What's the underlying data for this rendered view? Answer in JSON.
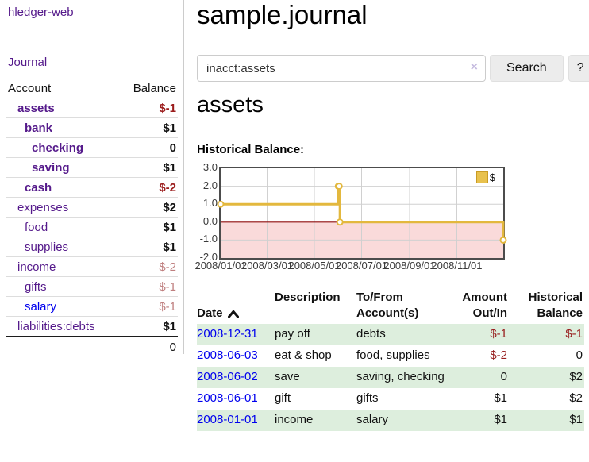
{
  "app": {
    "title": "hledger-web"
  },
  "sidebar": {
    "journal_link": "Journal",
    "accounts_table": {
      "headers": {
        "account": "Account",
        "balance": "Balance"
      },
      "rows": [
        {
          "account": "assets",
          "balance": "$-1",
          "indent": 1,
          "in_account": true,
          "balance_style": "neg-strong"
        },
        {
          "account": "bank",
          "balance": "$1",
          "indent": 2,
          "in_account": true,
          "balance_style": ""
        },
        {
          "account": "checking",
          "balance": "0",
          "indent": 3,
          "in_account": true,
          "balance_style": ""
        },
        {
          "account": "saving",
          "balance": "$1",
          "indent": 3,
          "in_account": true,
          "balance_style": ""
        },
        {
          "account": "cash",
          "balance": "$-2",
          "indent": 2,
          "in_account": true,
          "balance_style": "neg-strong"
        },
        {
          "account": "expenses",
          "balance": "$2",
          "indent": 1,
          "in_account": false,
          "balance_style": ""
        },
        {
          "account": "food",
          "balance": "$1",
          "indent": 2,
          "in_account": false,
          "balance_style": ""
        },
        {
          "account": "supplies",
          "balance": "$1",
          "indent": 2,
          "in_account": false,
          "balance_style": ""
        },
        {
          "account": "income",
          "balance": "$-2",
          "indent": 1,
          "in_account": false,
          "balance_style": "neg-muted"
        },
        {
          "account": "gifts",
          "balance": "$-1",
          "indent": 2,
          "in_account": false,
          "balance_style": "neg-muted"
        },
        {
          "account": "salary",
          "balance": "$-1",
          "indent": 2,
          "in_account": false,
          "balance_style": "neg-muted",
          "link_color": "blue"
        },
        {
          "account": "liabilities:debts",
          "balance": "$1",
          "indent": 1,
          "in_account": false,
          "balance_style": ""
        }
      ],
      "total": "0"
    }
  },
  "main": {
    "title": "sample.journal",
    "search": {
      "value": "inacct:assets",
      "clear_icon": "×",
      "button_label": "Search",
      "help_label": "?"
    },
    "account_heading": "assets",
    "chart_heading": "Historical Balance:"
  },
  "chart_data": {
    "type": "line",
    "title": "Historical Balance:",
    "x_range": [
      "2008-01-01",
      "2008-12-31"
    ],
    "ylim": [
      -2,
      3
    ],
    "grid": true,
    "legend_position": "top-right",
    "y_ticks": [
      {
        "value": 3,
        "label": "3.0"
      },
      {
        "value": 2,
        "label": "2.0"
      },
      {
        "value": 1,
        "label": "1.0"
      },
      {
        "value": 0,
        "label": "0.0"
      },
      {
        "value": -1,
        "label": "-1.0"
      },
      {
        "value": -2,
        "label": "-2.0"
      }
    ],
    "x_ticks": [
      {
        "date": "2008-01-01",
        "label": "2008/01/01"
      },
      {
        "date": "2008-03-01",
        "label": "2008/03/01"
      },
      {
        "date": "2008-05-01",
        "label": "2008/05/01"
      },
      {
        "date": "2008-07-01",
        "label": "2008/07/01"
      },
      {
        "date": "2008-09-01",
        "label": "2008/09/01"
      },
      {
        "date": "2008-11-01",
        "label": "2008/11/01"
      }
    ],
    "series": [
      {
        "name": "$",
        "interpolation": "step-after",
        "points": [
          [
            "2008-01-01",
            1
          ],
          [
            "2008-06-01",
            2
          ],
          [
            "2008-06-02",
            2
          ],
          [
            "2008-06-03",
            0
          ],
          [
            "2008-12-31",
            -1
          ]
        ]
      }
    ],
    "colors": {
      "line": "#e3b83e",
      "marker_fill": "#ffffff",
      "negative_region": "#fadada",
      "zero_line": "#8f0d0d",
      "grid": "#d0d0d0",
      "border": "#4c4c4c"
    }
  },
  "register": {
    "sort": {
      "column": "date",
      "direction": "asc"
    },
    "headers": {
      "date": "Date",
      "description": "Description",
      "accounts": "To/From\nAccount(s)",
      "amount": "Amount\nOut/In",
      "balance": "Historical\nBalance"
    },
    "rows": [
      {
        "date": "2008-12-31",
        "description": "pay off",
        "accounts": "debts",
        "amount": "$-1",
        "balance": "$-1",
        "amount_negative": true,
        "balance_negative": true
      },
      {
        "date": "2008-06-03",
        "description": "eat & shop",
        "accounts": "food, supplies",
        "amount": "$-2",
        "balance": "0",
        "amount_negative": true,
        "balance_negative": false
      },
      {
        "date": "2008-06-02",
        "description": "save",
        "accounts": "saving, checking",
        "amount": "0",
        "balance": "$2",
        "amount_negative": false,
        "balance_negative": false
      },
      {
        "date": "2008-06-01",
        "description": "gift",
        "accounts": "gifts",
        "amount": "$1",
        "balance": "$2",
        "amount_negative": false,
        "balance_negative": false
      },
      {
        "date": "2008-01-01",
        "description": "income",
        "accounts": "salary",
        "amount": "$1",
        "balance": "$1",
        "amount_negative": false,
        "balance_negative": false
      }
    ]
  },
  "colors": {
    "link_purple": "#551a8b",
    "link_blue": "#0000ee",
    "negative_strong": "#9b1c1c",
    "negative_muted": "#bf7f7f",
    "register_negative": "#992020",
    "row_stripe_green": "#ddeedd"
  }
}
